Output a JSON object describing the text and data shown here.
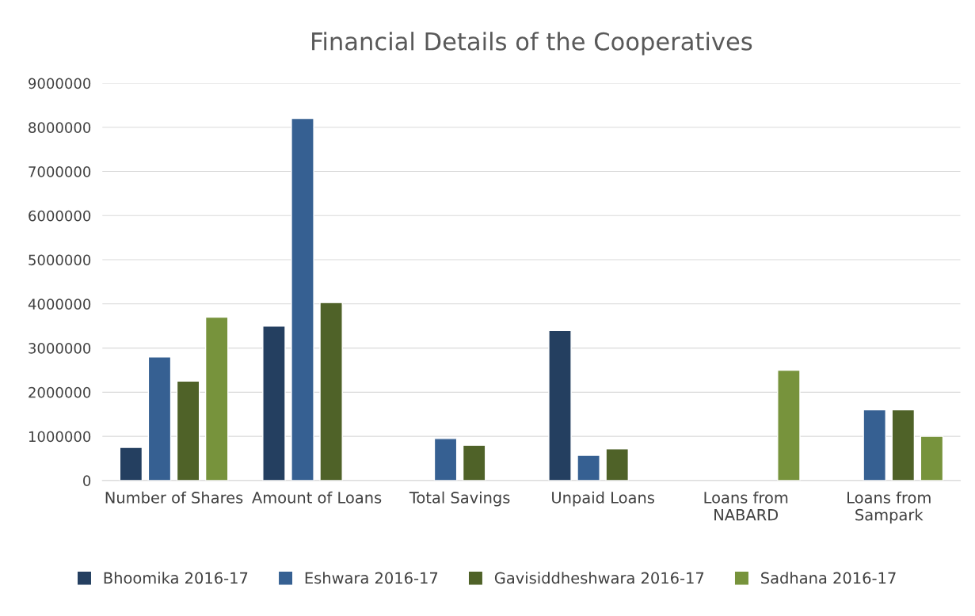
{
  "chart_data": {
    "type": "bar",
    "title": "Financial Details of the Cooperatives",
    "categories": [
      "Number of Shares",
      "Amount of Loans",
      "Total Savings",
      "Unpaid Loans",
      "Loans from\nNABARD",
      "Loans from\nSampark"
    ],
    "series": [
      {
        "name": "Bhoomika 2016-17",
        "color": "#243f60",
        "values": [
          750000,
          3500000,
          null,
          3400000,
          null,
          null
        ]
      },
      {
        "name": "Eshwara 2016-17",
        "color": "#366092",
        "values": [
          2800000,
          8200000,
          950000,
          570000,
          null,
          1600000
        ]
      },
      {
        "name": "Gavisiddheshwara 2016-17",
        "color": "#4f6228",
        "values": [
          2250000,
          4030000,
          800000,
          720000,
          null,
          1600000
        ]
      },
      {
        "name": "Sadhana 2016-17",
        "color": "#77933c",
        "values": [
          3700000,
          null,
          null,
          null,
          2500000,
          1000000
        ]
      }
    ],
    "ylim": [
      0,
      9000000
    ],
    "yticks": [
      0,
      1000000,
      2000000,
      3000000,
      4000000,
      5000000,
      6000000,
      7000000,
      8000000,
      9000000
    ],
    "grid": "y",
    "legend": "bottom"
  }
}
